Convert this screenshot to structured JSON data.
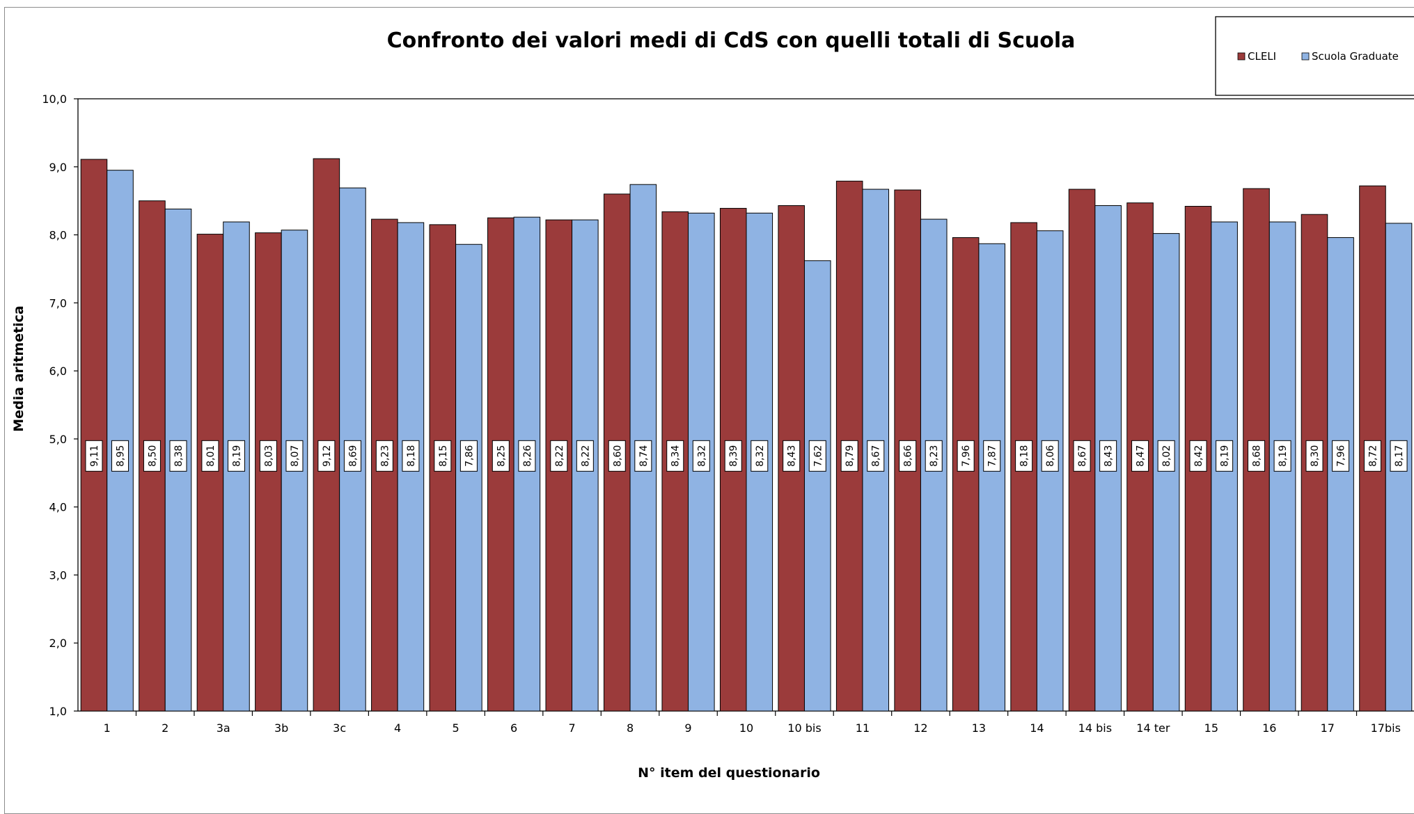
{
  "chart_data": {
    "type": "bar",
    "title": "Confronto dei valori medi di CdS con quelli totali di Scuola",
    "xlabel": "N° item del questionario",
    "ylabel": "Media aritmetica",
    "ylim": [
      1.0,
      10.0
    ],
    "yticks": [
      "1,0",
      "2,0",
      "3,0",
      "4,0",
      "5,0",
      "6,0",
      "7,0",
      "8,0",
      "9,0",
      "10,0"
    ],
    "categories": [
      "1",
      "2",
      "3a",
      "3b",
      "3c",
      "4",
      "5",
      "6",
      "7",
      "8",
      "9",
      "10",
      "10 bis",
      "11",
      "12",
      "13",
      "14",
      "14 bis",
      "14 ter",
      "15",
      "16",
      "17",
      "17bis"
    ],
    "series": [
      {
        "name": "CLELI",
        "color": "#9b3b3b",
        "values": [
          9.11,
          8.5,
          8.01,
          8.03,
          9.12,
          8.23,
          8.15,
          8.25,
          8.22,
          8.6,
          8.34,
          8.39,
          8.43,
          8.79,
          8.66,
          7.96,
          8.18,
          8.67,
          8.47,
          8.42,
          8.68,
          8.3,
          8.72
        ],
        "labels": [
          "9,11",
          "8,50",
          "8,01",
          "8,03",
          "9,12",
          "8,23",
          "8,15",
          "8,25",
          "8,22",
          "8,60",
          "8,34",
          "8,39",
          "8,43",
          "8,79",
          "8,66",
          "7,96",
          "8,18",
          "8,67",
          "8,47",
          "8,42",
          "8,68",
          "8,30",
          "8,72"
        ]
      },
      {
        "name": "Scuola Graduate",
        "color": "#8fb3e3",
        "values": [
          8.95,
          8.38,
          8.19,
          8.07,
          8.69,
          8.18,
          7.86,
          8.26,
          8.22,
          8.74,
          8.32,
          8.32,
          7.62,
          8.67,
          8.23,
          7.87,
          8.06,
          8.43,
          8.02,
          8.19,
          8.19,
          7.96,
          8.17
        ],
        "labels": [
          "8,95",
          "8,38",
          "8,19",
          "8,07",
          "8,69",
          "8,18",
          "7,86",
          "8,26",
          "8,22",
          "8,74",
          "8,32",
          "8,32",
          "7,62",
          "8,67",
          "8,23",
          "7,87",
          "8,06",
          "8,43",
          "8,02",
          "8,19",
          "8,19",
          "7,96",
          "8,17"
        ]
      }
    ],
    "grid": false,
    "legend": "top-right"
  }
}
